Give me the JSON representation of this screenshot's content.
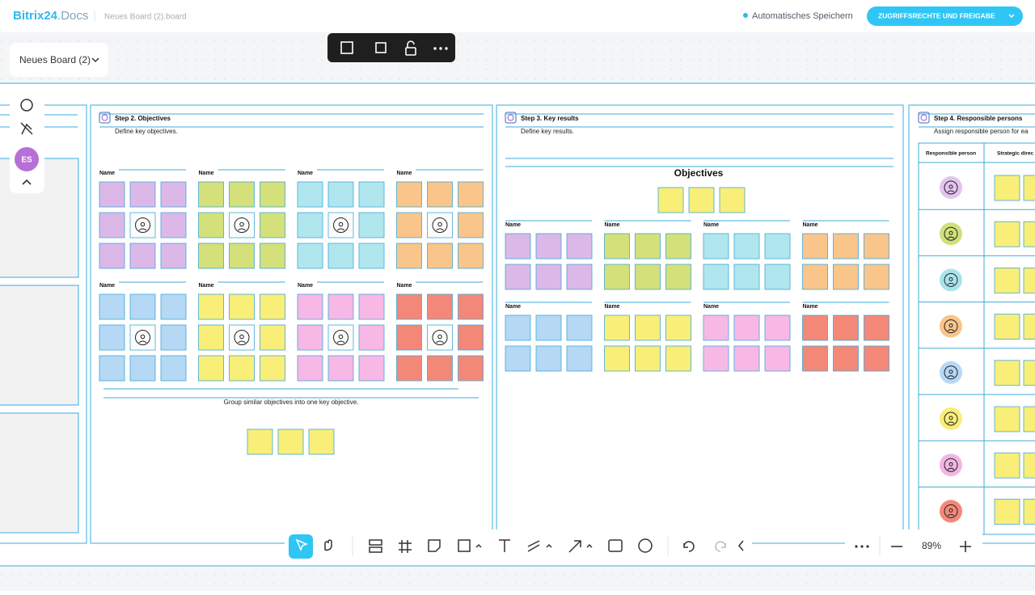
{
  "header": {
    "logo_brand": "Bitrix24",
    "logo_product": ".Docs",
    "file_name": "Neues Board (2).board",
    "autosave": "Automatisches Speichern",
    "share_button": "ZUGRIFFSRECHTE UND FREIGABE"
  },
  "board_menu": "Neues Board (2)",
  "user_initials": "ES",
  "step2": {
    "title": "Step 2. Objectives",
    "subtitle": "Define key objectives.",
    "group_labels": [
      "Name",
      "Name",
      "Name",
      "Name",
      "Name",
      "Name",
      "Name",
      "Name"
    ],
    "note": "Group similar objectives into one key objective."
  },
  "step3": {
    "title": "Step 3. Key results",
    "subtitle": "Define key results.",
    "heading": "Objectives",
    "group_labels": [
      "Name",
      "Name",
      "Name",
      "Name",
      "Name",
      "Name",
      "Name",
      "Name"
    ]
  },
  "step4": {
    "title": "Step 4. Responsible persons",
    "subtitle": "Assign responsible person for ea",
    "columns": [
      "Responsible person",
      "Strategic direc"
    ]
  },
  "zoom": "89%"
}
